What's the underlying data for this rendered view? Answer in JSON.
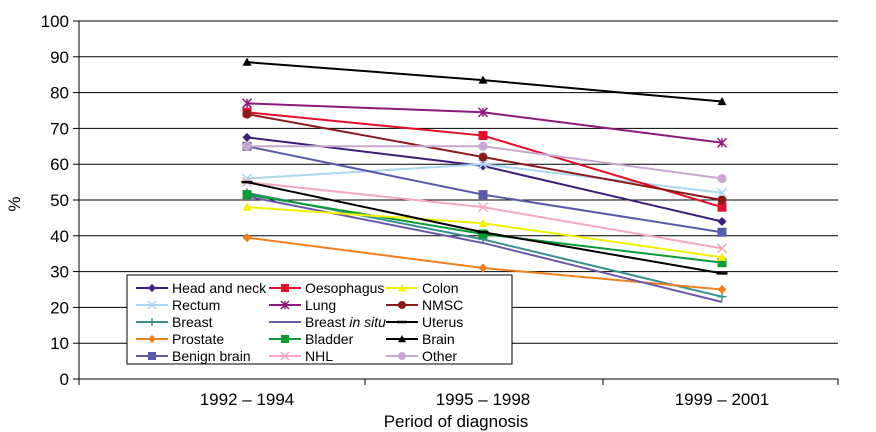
{
  "chart_data": {
    "type": "line",
    "categories": [
      "1992 – 1994",
      "1995 – 1998",
      "1999 – 2001"
    ],
    "xlabel": "Period of diagnosis",
    "ylabel": "%",
    "ylim": [
      0,
      100
    ],
    "yticks": [
      0,
      10,
      20,
      30,
      40,
      50,
      60,
      70,
      80,
      90,
      100
    ],
    "grid": true,
    "legend_position": "bottom-left",
    "series": [
      {
        "name": "Head and neck",
        "values": [
          67.5,
          59.5,
          44
        ],
        "color": "#3b1f7a",
        "marker": "diamond"
      },
      {
        "name": "Rectum",
        "values": [
          56,
          60,
          52
        ],
        "color": "#a9d8f0",
        "marker": "x"
      },
      {
        "name": "Breast",
        "values": [
          52,
          39,
          23
        ],
        "color": "#3a8f8f",
        "marker": "plus"
      },
      {
        "name": "Prostate",
        "values": [
          39.5,
          31,
          25
        ],
        "color": "#f07f1e",
        "marker": "diamond"
      },
      {
        "name": "Benign brain",
        "values": [
          65,
          51.5,
          41
        ],
        "color": "#5a5aaa",
        "marker": "square"
      },
      {
        "name": "Oesophagus",
        "values": [
          74.5,
          68,
          48
        ],
        "color": "#e0102a",
        "marker": "square"
      },
      {
        "name": "Lung",
        "values": [
          77,
          74.5,
          66
        ],
        "color": "#8b1a7a",
        "marker": "asterisk"
      },
      {
        "name": "Breast in situ",
        "prefix": "Breast ",
        "suffix": "in situ",
        "values": [
          51,
          38,
          21.5
        ],
        "color": "#6a5aaa",
        "marker": "none"
      },
      {
        "name": "Bladder",
        "values": [
          51.5,
          40.5,
          32.5
        ],
        "color": "#0a9a3a",
        "marker": "square"
      },
      {
        "name": "NHL",
        "values": [
          55,
          48,
          36.5
        ],
        "color": "#f5a8c0",
        "marker": "x"
      },
      {
        "name": "Colon",
        "values": [
          48,
          43.5,
          34
        ],
        "color": "#f0f000",
        "marker": "triangle"
      },
      {
        "name": "NMSC",
        "values": [
          74,
          62,
          50
        ],
        "color": "#8b1a1a",
        "marker": "circle"
      },
      {
        "name": "Uterus",
        "values": [
          55,
          41,
          29.5
        ],
        "color": "#000000",
        "marker": "dash"
      },
      {
        "name": "Brain",
        "values": [
          88.5,
          83.5,
          77.5
        ],
        "color": "#000000",
        "marker": "triangle"
      },
      {
        "name": "Other",
        "values": [
          65,
          65,
          56
        ],
        "color": "#c8a8d0",
        "marker": "circle"
      }
    ]
  }
}
